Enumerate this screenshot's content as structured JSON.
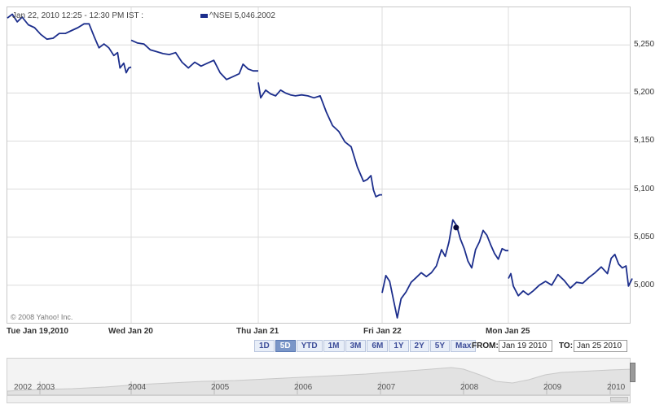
{
  "header": {
    "timestamp": "Jan 22, 2010 12:25 - 12:30 PM IST :",
    "legend_symbol": "^NSEI",
    "legend_value": "5,046.2002",
    "series_color": "#1c2e8c"
  },
  "copyright": "© 2008 Yahoo! Inc.",
  "range_buttons": [
    "1D",
    "5D",
    "YTD",
    "1M",
    "3M",
    "6M",
    "1Y",
    "2Y",
    "5Y",
    "Max"
  ],
  "active_range": "5D",
  "date_from_label": "FROM:",
  "date_from": "Jan 19 2010",
  "date_to_label": "TO:",
  "date_to": "Jan 25 2010",
  "navigator": {
    "years": [
      "2002",
      "2003",
      "2004",
      "2005",
      "2006",
      "2007",
      "2008",
      "2009",
      "2010"
    ]
  },
  "chart_data": {
    "type": "line",
    "x_categories": [
      "Tue Jan 19,2010",
      "Wed Jan 20",
      "Thu Jan 21",
      "Fri Jan 22",
      "Mon Jan 25"
    ],
    "y_ticks": [
      5000,
      5050,
      5100,
      5150,
      5200,
      5250
    ],
    "y_tick_labels": [
      "5,000",
      "5,050",
      "5,100",
      "5,150",
      "5,200",
      "5,250"
    ],
    "ylim": [
      4960,
      5290
    ],
    "grid": true,
    "series": [
      {
        "name": "^NSEI",
        "segments": [
          {
            "day": 0,
            "points": [
              [
                0.0,
                5278
              ],
              [
                0.04,
                5282
              ],
              [
                0.08,
                5274
              ],
              [
                0.12,
                5279
              ],
              [
                0.17,
                5271
              ],
              [
                0.22,
                5268
              ],
              [
                0.27,
                5261
              ],
              [
                0.32,
                5256
              ],
              [
                0.37,
                5257
              ],
              [
                0.42,
                5262
              ],
              [
                0.47,
                5262
              ],
              [
                0.52,
                5265
              ],
              [
                0.57,
                5268
              ],
              [
                0.62,
                5272
              ],
              [
                0.66,
                5272
              ],
              [
                0.7,
                5259
              ],
              [
                0.74,
                5247
              ],
              [
                0.78,
                5251
              ],
              [
                0.82,
                5247
              ],
              [
                0.86,
                5239
              ],
              [
                0.89,
                5242
              ],
              [
                0.91,
                5226
              ],
              [
                0.94,
                5231
              ],
              [
                0.96,
                5221
              ],
              [
                0.98,
                5226
              ],
              [
                1.0,
                5227
              ]
            ]
          },
          {
            "day": 1,
            "points": [
              [
                0.0,
                5255
              ],
              [
                0.05,
                5252
              ],
              [
                0.1,
                5251
              ],
              [
                0.15,
                5245
              ],
              [
                0.2,
                5243
              ],
              [
                0.25,
                5241
              ],
              [
                0.3,
                5240
              ],
              [
                0.35,
                5242
              ],
              [
                0.4,
                5232
              ],
              [
                0.45,
                5226
              ],
              [
                0.5,
                5232
              ],
              [
                0.55,
                5228
              ],
              [
                0.6,
                5231
              ],
              [
                0.65,
                5234
              ],
              [
                0.7,
                5221
              ],
              [
                0.75,
                5214
              ],
              [
                0.8,
                5217
              ],
              [
                0.85,
                5220
              ],
              [
                0.88,
                5230
              ],
              [
                0.92,
                5225
              ],
              [
                0.96,
                5223
              ],
              [
                1.0,
                5223
              ]
            ]
          },
          {
            "day": 2,
            "points": [
              [
                0.0,
                5211
              ],
              [
                0.02,
                5195
              ],
              [
                0.06,
                5203
              ],
              [
                0.1,
                5199
              ],
              [
                0.14,
                5197
              ],
              [
                0.18,
                5203
              ],
              [
                0.22,
                5200
              ],
              [
                0.26,
                5198
              ],
              [
                0.3,
                5197
              ],
              [
                0.35,
                5198
              ],
              [
                0.4,
                5197
              ],
              [
                0.45,
                5195
              ],
              [
                0.5,
                5197
              ],
              [
                0.55,
                5180
              ],
              [
                0.6,
                5166
              ],
              [
                0.65,
                5160
              ],
              [
                0.7,
                5149
              ],
              [
                0.75,
                5144
              ],
              [
                0.8,
                5123
              ],
              [
                0.85,
                5108
              ],
              [
                0.88,
                5110
              ],
              [
                0.91,
                5114
              ],
              [
                0.93,
                5099
              ],
              [
                0.95,
                5092
              ],
              [
                0.98,
                5094
              ],
              [
                1.0,
                5094
              ]
            ]
          },
          {
            "day": 3,
            "points": [
              [
                0.0,
                4992
              ],
              [
                0.03,
                5010
              ],
              [
                0.06,
                5004
              ],
              [
                0.09,
                4985
              ],
              [
                0.12,
                4966
              ],
              [
                0.15,
                4986
              ],
              [
                0.19,
                4993
              ],
              [
                0.23,
                5003
              ],
              [
                0.27,
                5008
              ],
              [
                0.31,
                5013
              ],
              [
                0.35,
                5009
              ],
              [
                0.39,
                5013
              ],
              [
                0.43,
                5020
              ],
              [
                0.47,
                5037
              ],
              [
                0.5,
                5030
              ],
              [
                0.53,
                5045
              ],
              [
                0.56,
                5068
              ],
              [
                0.59,
                5062
              ],
              [
                0.62,
                5048
              ],
              [
                0.65,
                5038
              ],
              [
                0.68,
                5025
              ],
              [
                0.71,
                5018
              ],
              [
                0.74,
                5037
              ],
              [
                0.77,
                5045
              ],
              [
                0.8,
                5057
              ],
              [
                0.83,
                5052
              ],
              [
                0.86,
                5042
              ],
              [
                0.89,
                5033
              ],
              [
                0.92,
                5027
              ],
              [
                0.95,
                5038
              ],
              [
                0.98,
                5036
              ],
              [
                1.0,
                5036
              ]
            ]
          },
          {
            "day": 4,
            "points": [
              [
                0.0,
                5007
              ],
              [
                0.02,
                5012
              ],
              [
                0.04,
                4999
              ],
              [
                0.08,
                4989
              ],
              [
                0.12,
                4994
              ],
              [
                0.16,
                4990
              ],
              [
                0.2,
                4994
              ],
              [
                0.25,
                5000
              ],
              [
                0.3,
                5004
              ],
              [
                0.35,
                5000
              ],
              [
                0.4,
                5011
              ],
              [
                0.45,
                5005
              ],
              [
                0.5,
                4997
              ],
              [
                0.55,
                5003
              ],
              [
                0.6,
                5002
              ],
              [
                0.65,
                5008
              ],
              [
                0.7,
                5013
              ],
              [
                0.75,
                5019
              ],
              [
                0.8,
                5012
              ],
              [
                0.83,
                5028
              ],
              [
                0.86,
                5032
              ],
              [
                0.89,
                5022
              ],
              [
                0.92,
                5018
              ],
              [
                0.95,
                5020
              ],
              [
                0.97,
                4999
              ],
              [
                1.0,
                5007
              ]
            ]
          }
        ]
      }
    ],
    "marker": {
      "x_day": 3,
      "x_frac": 0.586,
      "y": 5060
    }
  }
}
